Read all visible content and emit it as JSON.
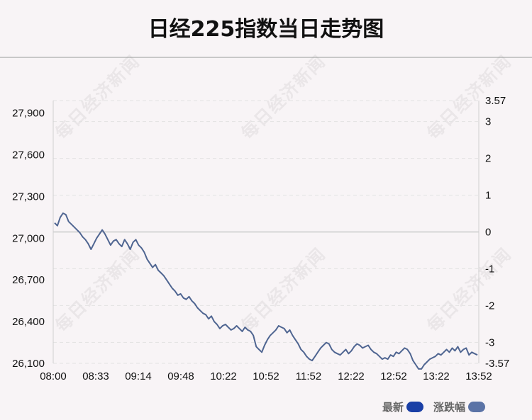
{
  "title": "日经225指数当日走势图",
  "watermark_text": "每日经济新闻",
  "legend": {
    "latest_label": "最新",
    "latest_color": "#1a3fa6",
    "change_label": "涨跌幅",
    "change_color": "#5b73a6"
  },
  "chart_data": {
    "type": "line",
    "x_tick_labels": [
      "08:00",
      "08:33",
      "09:14",
      "09:48",
      "10:22",
      "10:52",
      "11:52",
      "12:22",
      "12:52",
      "13:22",
      "13:52"
    ],
    "y_left_ticks": [
      26100,
      26400,
      26700,
      27000,
      27300,
      27600,
      27900
    ],
    "y_left_tick_labels": [
      "26,100",
      "26,400",
      "26,700",
      "27,000",
      "27,300",
      "27,600",
      "27,900"
    ],
    "y_right_tick_labels": [
      "3.57",
      "3",
      "2",
      "1",
      "0",
      "-1",
      "-2",
      "-3",
      "-3.57"
    ],
    "ylim_left": [
      26100,
      27990
    ],
    "ylim_right": [
      -3.57,
      3.57
    ],
    "grid": "horizontal-dashed",
    "line_color": "#4f6591",
    "series": [
      {
        "values": [
          27110,
          27090,
          27150,
          27180,
          27170,
          27120,
          27100,
          27080,
          27060,
          27040,
          27010,
          26990,
          26960,
          26920,
          26960,
          27000,
          27030,
          27060,
          27030,
          26990,
          26950,
          26980,
          26990,
          26960,
          26940,
          26990,
          26960,
          26920,
          26970,
          26990,
          26950,
          26930,
          26900,
          26850,
          26820,
          26790,
          26810,
          26770,
          26750,
          26730,
          26700,
          26670,
          26640,
          26620,
          26590,
          26600,
          26570,
          26560,
          26580,
          26550,
          26530,
          26500,
          26480,
          26460,
          26450,
          26420,
          26440,
          26400,
          26380,
          26350,
          26370,
          26380,
          26360,
          26340,
          26350,
          26370,
          26350,
          26330,
          26360,
          26340,
          26330,
          26300,
          26220,
          26200,
          26180,
          26230,
          26270,
          26300,
          26320,
          26340,
          26370,
          26360,
          26350,
          26320,
          26340,
          26300,
          26270,
          26240,
          26200,
          26180,
          26150,
          26130,
          26120,
          26150,
          26180,
          26210,
          26230,
          26250,
          26240,
          26200,
          26180,
          26170,
          26160,
          26180,
          26200,
          26170,
          26190,
          26220,
          26240,
          26230,
          26210,
          26220,
          26230,
          26200,
          26180,
          26170,
          26150,
          26130,
          26140,
          26130,
          26160,
          26150,
          26180,
          26170,
          26190,
          26210,
          26200,
          26170,
          26120,
          26090,
          26060,
          26060,
          26090,
          26110,
          26130,
          26140,
          26150,
          26170,
          26160,
          26180,
          26200,
          26180,
          26210,
          26190,
          26220,
          26180,
          26200,
          26210,
          26160,
          26180,
          26170,
          26160
        ]
      }
    ]
  }
}
